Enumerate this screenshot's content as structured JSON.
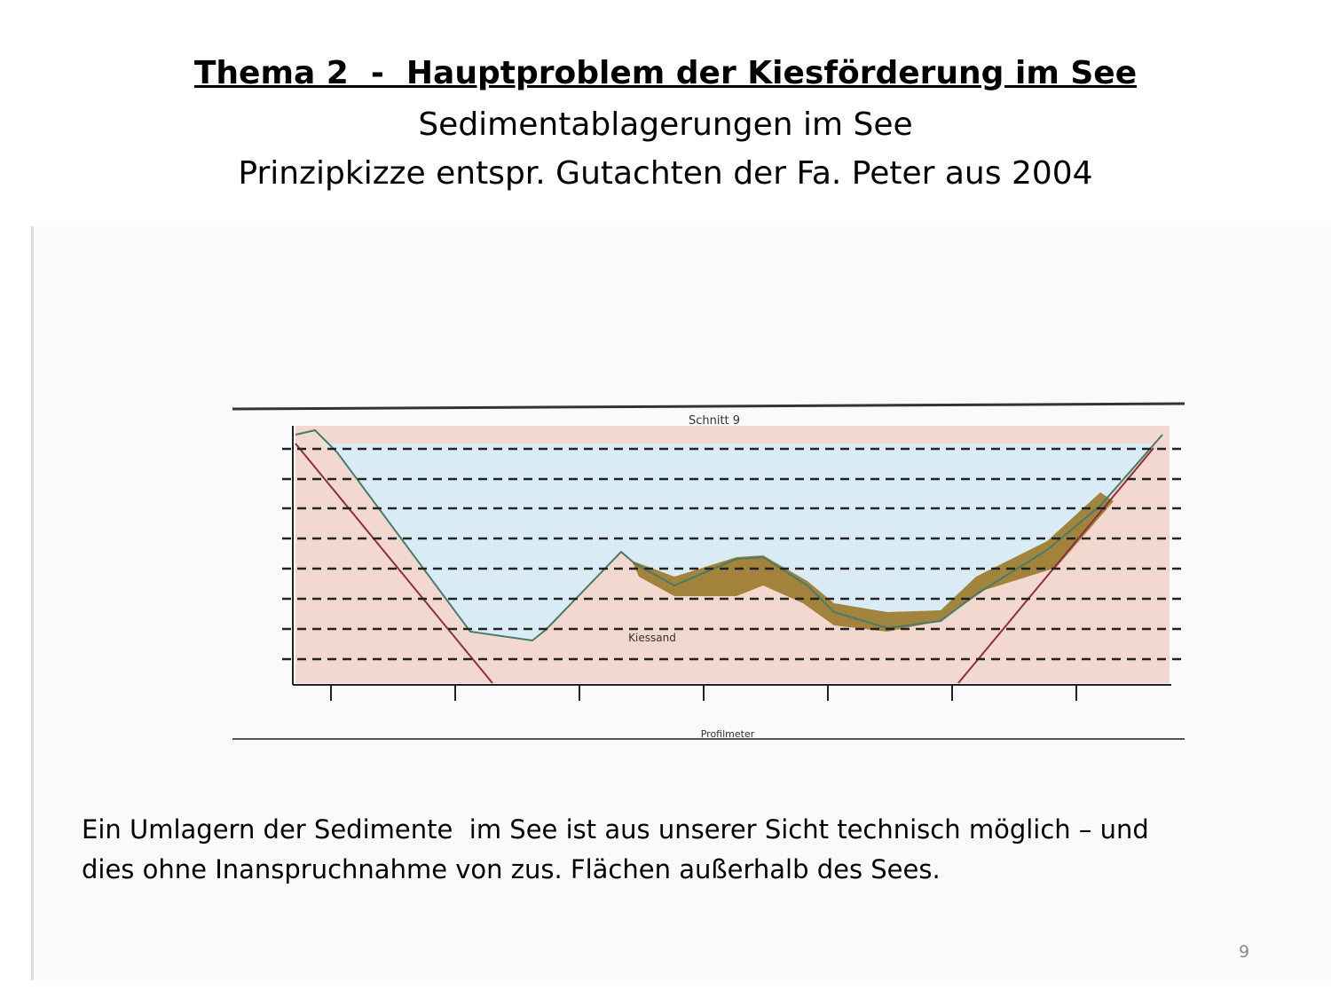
{
  "header": {
    "title": "Thema 2  -  Hauptproblem der Kiesförderung im See",
    "subtitle": "Sedimentablagerungen im See",
    "subtitle2": "Prinzipkizze entspr. Gutachten der Fa. Peter aus 2004"
  },
  "figure": {
    "title": "Schnitt 9",
    "x_label": "Profilmeter",
    "ground_label": "Kiessand"
  },
  "body": {
    "lines": [
      "Ein Umlagern der Sedimente  im See ist aus unserer Sicht technisch möglich – und",
      "dies ohne Inanspruchnahme von zus. Flächen außerhalb des Sees."
    ]
  },
  "footer": {
    "page_number": "9"
  }
}
